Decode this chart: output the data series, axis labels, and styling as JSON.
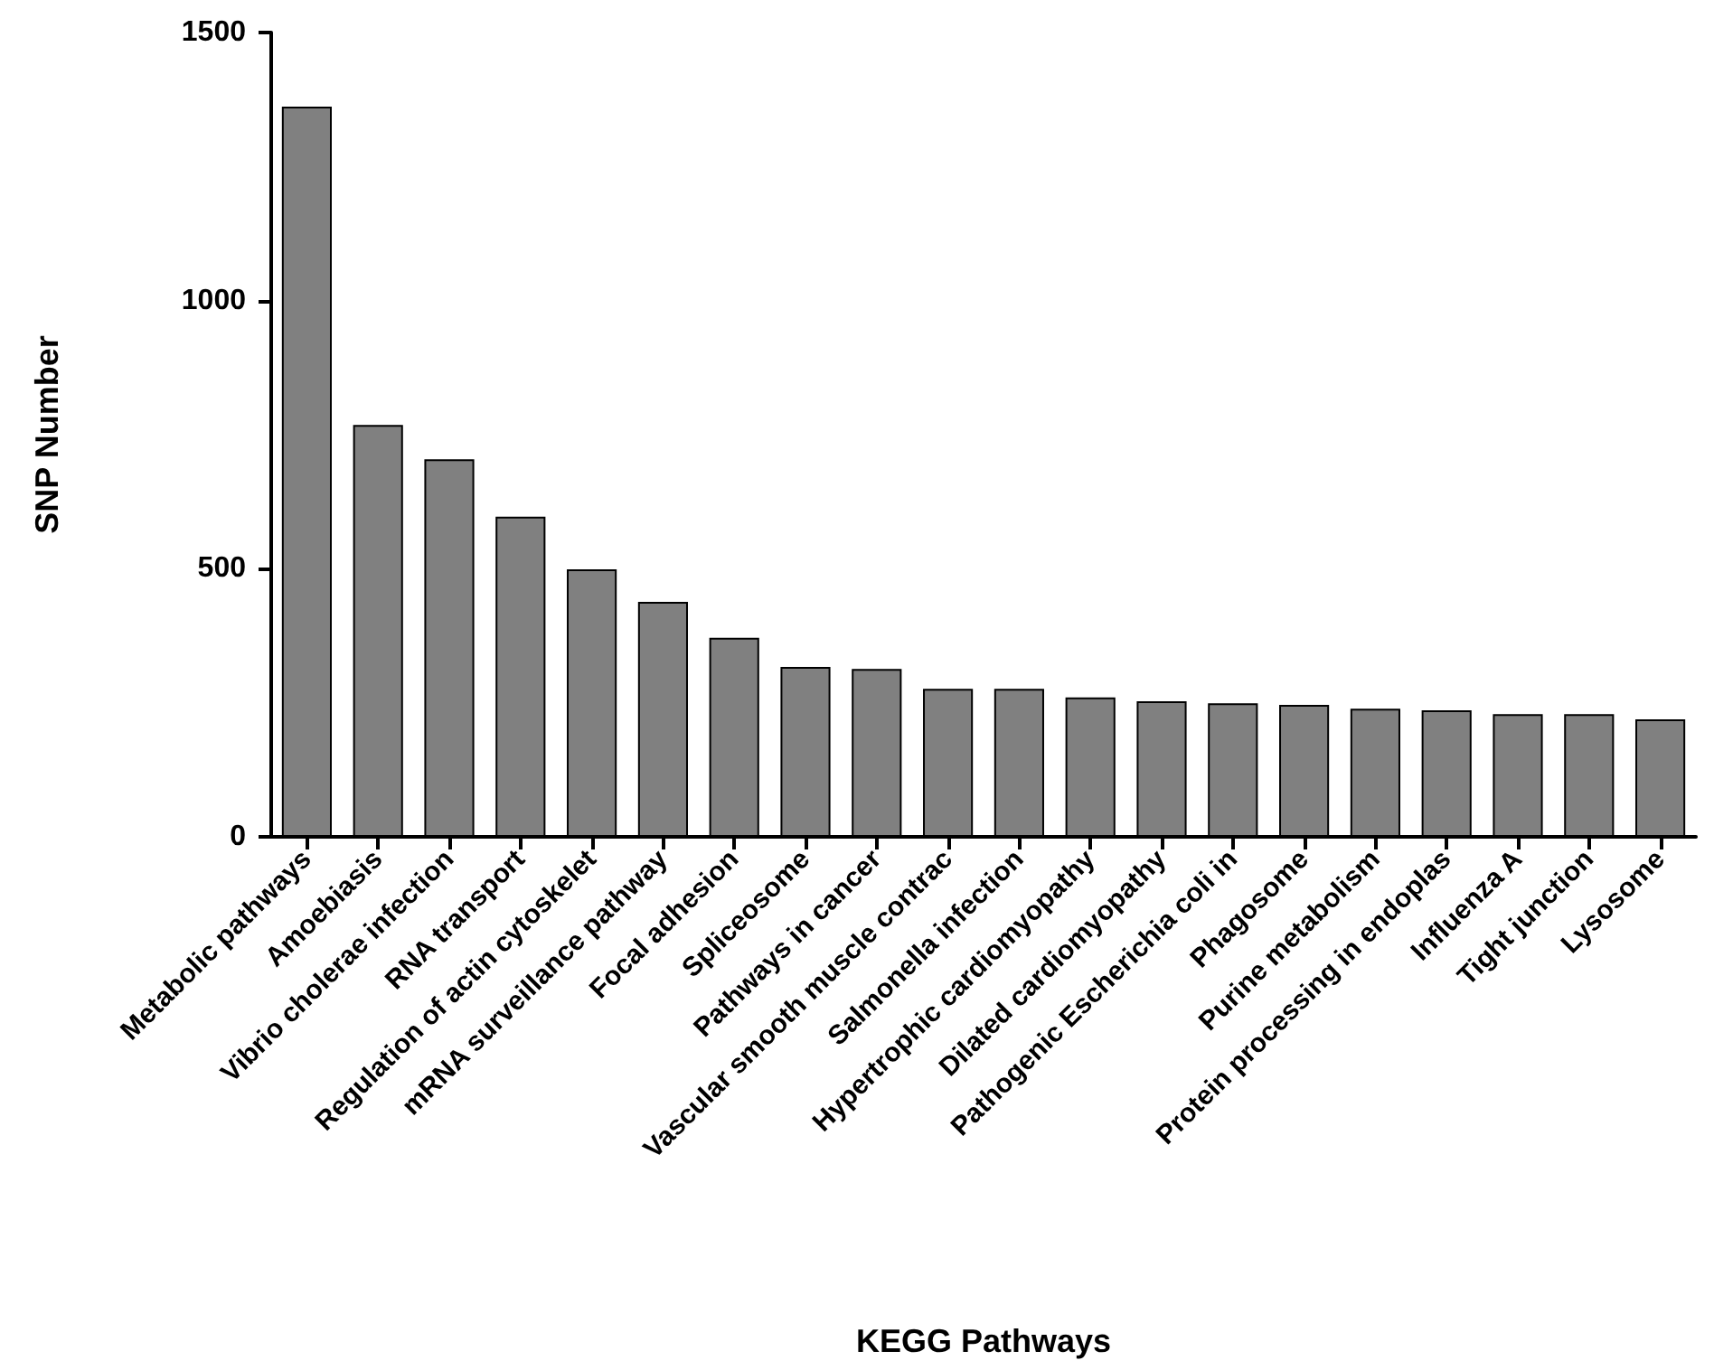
{
  "chart_data": {
    "type": "bar",
    "xlabel": "KEGG Pathways",
    "ylabel": "SNP Number",
    "categories": [
      "Metabolic pathways",
      "Amoebiasis",
      "Vibrio cholerae infection",
      "RNA transport",
      "Regulation of actin cytoskelet",
      "mRNA surveillance pathway",
      "Focal adhesion",
      "Spliceosome",
      "Pathways in cancer",
      "Vascular smooth muscle contrac",
      "Salmonella infection",
      "Hypertrophic cardiomyopathy",
      "Dilated cardiomyopathy",
      "Pathogenic Escherichia coli in",
      "Phagosome",
      "Purine metabolism",
      "Protein processing in endoplas",
      "Influenza A",
      "Tight junction",
      "Lysosome"
    ],
    "values": [
      1362,
      768,
      704,
      597,
      499,
      438,
      371,
      317,
      313,
      276,
      276,
      260,
      253,
      249,
      246,
      239,
      236,
      229,
      229,
      219
    ],
    "color": "#808080",
    "ylim": [
      0,
      1500
    ],
    "yticks": [
      0,
      500,
      1000,
      1500
    ],
    "grid": false
  }
}
